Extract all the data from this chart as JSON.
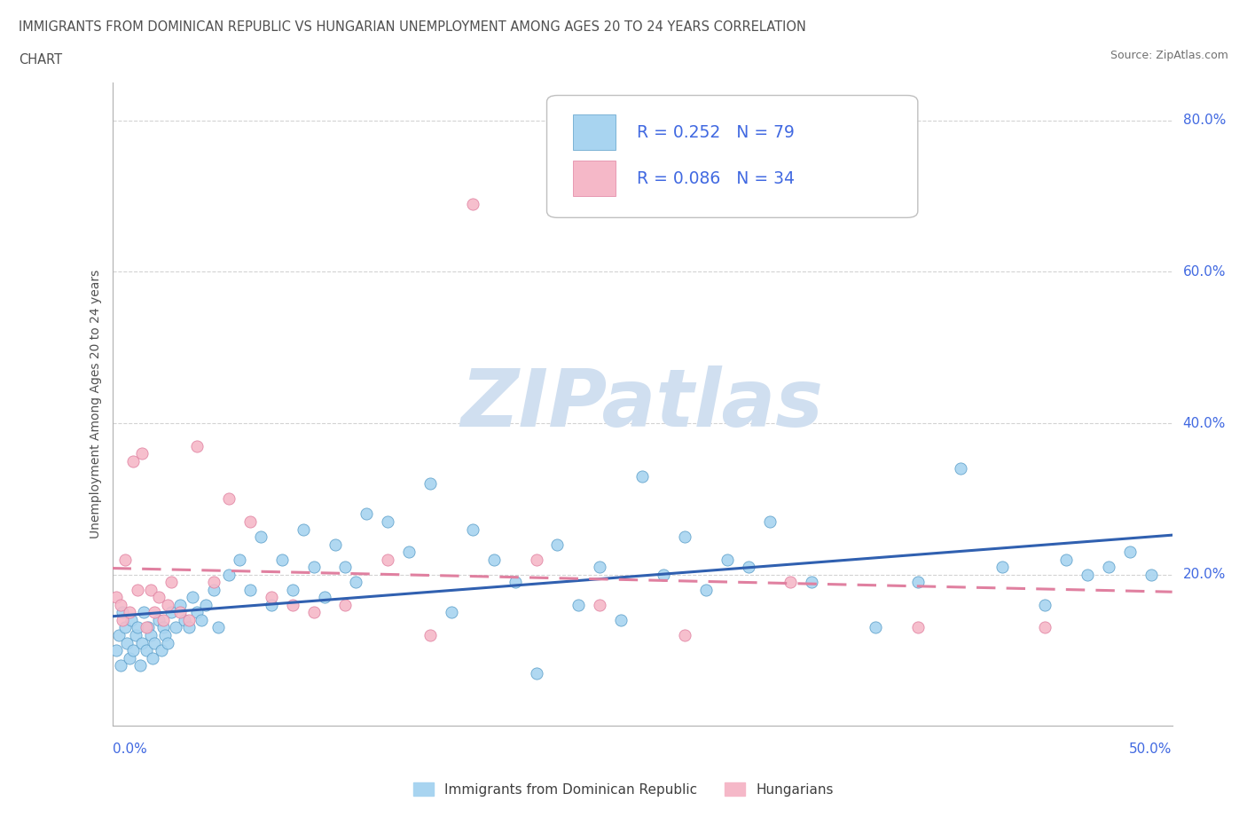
{
  "title_line1": "IMMIGRANTS FROM DOMINICAN REPUBLIC VS HUNGARIAN UNEMPLOYMENT AMONG AGES 20 TO 24 YEARS CORRELATION",
  "title_line2": "CHART",
  "source": "Source: ZipAtlas.com",
  "ylabel": "Unemployment Among Ages 20 to 24 years",
  "xlim": [
    0.0,
    0.5
  ],
  "ylim": [
    0.0,
    0.85
  ],
  "ytick_vals": [
    0.0,
    0.2,
    0.4,
    0.6,
    0.8
  ],
  "ytick_labels_right": [
    "",
    "20.0%",
    "40.0%",
    "60.0%",
    "80.0%"
  ],
  "color_blue_fill": "#A8D4F0",
  "color_blue_edge": "#5A9EC9",
  "color_blue_line": "#3060B0",
  "color_pink_fill": "#F5B8C8",
  "color_pink_edge": "#E080A0",
  "color_pink_line": "#E080A0",
  "color_axis_label": "#4169E1",
  "color_grid": "#C8C8C8",
  "watermark_text": "ZIPatlas",
  "watermark_color": "#D0DFF0",
  "legend_label1": "R = 0.252   N = 79",
  "legend_label2": "R = 0.086   N = 34",
  "legend_bottom1": "Immigrants from Dominican Republic",
  "legend_bottom2": "Hungarians",
  "blue_x": [
    0.002,
    0.003,
    0.004,
    0.005,
    0.006,
    0.007,
    0.008,
    0.009,
    0.01,
    0.011,
    0.012,
    0.013,
    0.014,
    0.015,
    0.016,
    0.017,
    0.018,
    0.019,
    0.02,
    0.022,
    0.023,
    0.024,
    0.025,
    0.026,
    0.028,
    0.03,
    0.032,
    0.034,
    0.036,
    0.038,
    0.04,
    0.042,
    0.044,
    0.048,
    0.05,
    0.055,
    0.06,
    0.065,
    0.07,
    0.075,
    0.08,
    0.085,
    0.09,
    0.095,
    0.1,
    0.105,
    0.11,
    0.115,
    0.12,
    0.13,
    0.14,
    0.15,
    0.16,
    0.17,
    0.18,
    0.19,
    0.2,
    0.21,
    0.22,
    0.23,
    0.24,
    0.25,
    0.26,
    0.27,
    0.28,
    0.29,
    0.3,
    0.31,
    0.33,
    0.36,
    0.38,
    0.4,
    0.42,
    0.44,
    0.45,
    0.46,
    0.47,
    0.48,
    0.49
  ],
  "blue_y": [
    0.1,
    0.12,
    0.08,
    0.15,
    0.13,
    0.11,
    0.09,
    0.14,
    0.1,
    0.12,
    0.13,
    0.08,
    0.11,
    0.15,
    0.1,
    0.13,
    0.12,
    0.09,
    0.11,
    0.14,
    0.1,
    0.13,
    0.12,
    0.11,
    0.15,
    0.13,
    0.16,
    0.14,
    0.13,
    0.17,
    0.15,
    0.14,
    0.16,
    0.18,
    0.13,
    0.2,
    0.22,
    0.18,
    0.25,
    0.16,
    0.22,
    0.18,
    0.26,
    0.21,
    0.17,
    0.24,
    0.21,
    0.19,
    0.28,
    0.27,
    0.23,
    0.32,
    0.15,
    0.26,
    0.22,
    0.19,
    0.07,
    0.24,
    0.16,
    0.21,
    0.14,
    0.33,
    0.2,
    0.25,
    0.18,
    0.22,
    0.21,
    0.27,
    0.19,
    0.13,
    0.19,
    0.34,
    0.21,
    0.16,
    0.22,
    0.2,
    0.21,
    0.23,
    0.2
  ],
  "pink_x": [
    0.002,
    0.004,
    0.005,
    0.006,
    0.008,
    0.01,
    0.012,
    0.014,
    0.016,
    0.018,
    0.02,
    0.022,
    0.024,
    0.026,
    0.028,
    0.032,
    0.036,
    0.04,
    0.048,
    0.055,
    0.065,
    0.075,
    0.085,
    0.095,
    0.11,
    0.13,
    0.15,
    0.17,
    0.2,
    0.23,
    0.27,
    0.32,
    0.38,
    0.44
  ],
  "pink_y": [
    0.17,
    0.16,
    0.14,
    0.22,
    0.15,
    0.35,
    0.18,
    0.36,
    0.13,
    0.18,
    0.15,
    0.17,
    0.14,
    0.16,
    0.19,
    0.15,
    0.14,
    0.37,
    0.19,
    0.3,
    0.27,
    0.17,
    0.16,
    0.15,
    0.16,
    0.22,
    0.12,
    0.69,
    0.22,
    0.16,
    0.12,
    0.19,
    0.13,
    0.13
  ]
}
